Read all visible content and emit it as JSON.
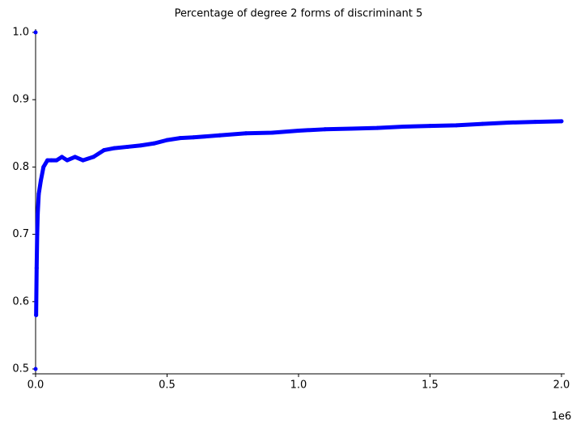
{
  "chart_data": {
    "type": "line",
    "title": "Percentage of degree 2 forms of discriminant 5",
    "x": [
      0,
      0,
      0,
      0,
      2000,
      4000,
      6000,
      8000,
      12000,
      20000,
      30000,
      45000,
      60000,
      80000,
      100000,
      120000,
      150000,
      180000,
      220000,
      260000,
      300000,
      350000,
      400000,
      450000,
      500000,
      550000,
      600000,
      700000,
      800000,
      900000,
      1000000,
      1100000,
      1200000,
      1300000,
      1400000,
      1500000,
      1600000,
      1700000,
      1800000,
      1900000,
      2000000
    ],
    "values": [
      1.0,
      null,
      0.5,
      null,
      0.58,
      0.65,
      0.7,
      0.73,
      0.76,
      0.78,
      0.8,
      0.81,
      0.81,
      0.81,
      0.815,
      0.81,
      0.815,
      0.81,
      0.815,
      0.825,
      0.828,
      0.83,
      0.832,
      0.835,
      0.84,
      0.843,
      0.844,
      0.847,
      0.85,
      0.851,
      0.854,
      0.856,
      0.857,
      0.858,
      0.86,
      0.861,
      0.862,
      0.864,
      0.866,
      0.867,
      0.868
    ],
    "color": "#0000ff",
    "xlim": [
      0,
      2000000
    ],
    "xticks": [
      {
        "value": 0,
        "label": "0.0"
      },
      {
        "value": 500000,
        "label": "0.5"
      },
      {
        "value": 1000000,
        "label": "1.0"
      },
      {
        "value": 1500000,
        "label": "1.5"
      },
      {
        "value": 2000000,
        "label": "2.0"
      }
    ],
    "x_offset_label": "1e6",
    "ylim": [
      0.5,
      1.0
    ],
    "yticks": [
      0.5,
      0.6,
      0.7,
      0.8,
      0.9,
      {
        "value": 1.0,
        "label": "1.0"
      }
    ],
    "grid": false
  }
}
